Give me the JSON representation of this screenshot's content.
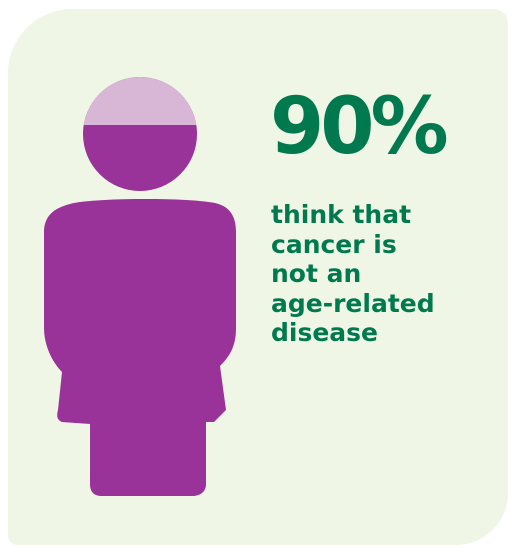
{
  "stat": {
    "value": "90%",
    "caption_lines": [
      "think that",
      "cancer is",
      "not an",
      "age-related",
      "disease"
    ],
    "fraction": 0.9
  },
  "colors": {
    "background_card": "#f0f6e5",
    "figure_fill": "#993399",
    "figure_head_top": "#d7b6d6",
    "text": "#00794f"
  },
  "icons": {
    "figure": "person-icon"
  }
}
